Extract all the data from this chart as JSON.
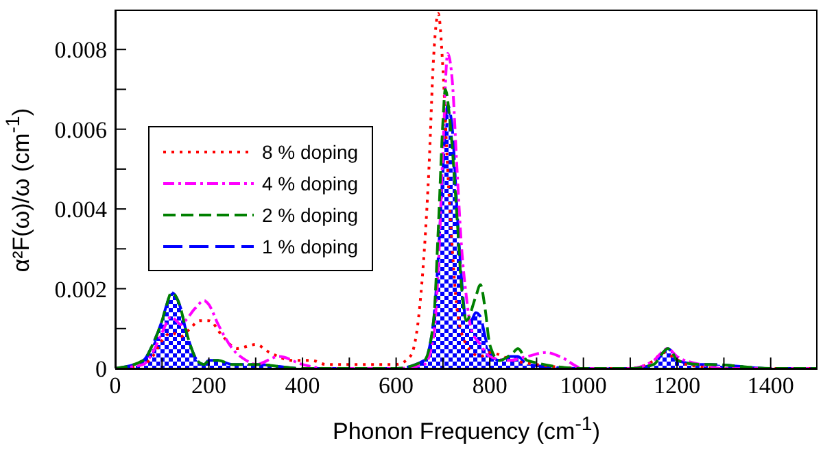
{
  "chart_data": {
    "type": "line",
    "xlabel": "Phonon Frequency (cm$^{-1}$)",
    "ylabel": "α²F(ω)/ω (cm$^{-1}$)",
    "xlim": [
      0,
      1500
    ],
    "xticks": [
      0,
      {
        "value": 100,
        "label": null
      },
      200,
      {
        "value": 300,
        "label": null
      },
      400,
      {
        "value": 500,
        "label": null
      },
      600,
      {
        "value": 700,
        "label": null
      },
      800,
      {
        "value": 900,
        "label": null
      },
      1000,
      {
        "value": 1100,
        "label": null
      },
      1200,
      {
        "value": 1300,
        "label": null
      },
      1400
    ],
    "ylim": [
      0,
      0.009
    ],
    "yticks": [
      0,
      {
        "value": 0.001,
        "label": null
      },
      0.002,
      {
        "value": 0.003,
        "label": null
      },
      0.004,
      {
        "value": 0.005,
        "label": null
      },
      0.006,
      {
        "value": 0.007,
        "label": null
      },
      0.008
    ],
    "legend": "left",
    "grid": false,
    "marker": "none",
    "series": [
      {
        "name": "8 % doping",
        "color": "#ff0000",
        "line_style": "dotted",
        "x": [
          0,
          60,
          80,
          100,
          120,
          140,
          160,
          180,
          200,
          230,
          260,
          300,
          330,
          380,
          420,
          450,
          500,
          550,
          600,
          630,
          650,
          670,
          680,
          690,
          700,
          710,
          720,
          730,
          750,
          780,
          800,
          850,
          900,
          1000,
          1100,
          1150,
          1170,
          1190,
          1220,
          1300,
          1500
        ],
        "values": [
          0,
          0.0001,
          0.0003,
          0.0007,
          0.0009,
          0.0008,
          0.001,
          0.0012,
          0.0012,
          0.0008,
          0.0005,
          0.0006,
          0.0004,
          0.0002,
          0.0002,
          0.0001,
          0.0001,
          0.0001,
          0.0001,
          0.0003,
          0.0015,
          0.005,
          0.0078,
          0.0089,
          0.0075,
          0.005,
          0.003,
          0.0015,
          0.0006,
          0.0003,
          0.0004,
          0.0002,
          0.0001,
          0,
          0,
          0.0002,
          0.0004,
          0.0003,
          0.0001,
          0,
          0
        ]
      },
      {
        "name": "4 % doping",
        "color": "#ff00ff",
        "line_style": "dashed",
        "x": [
          0,
          60,
          80,
          100,
          120,
          130,
          140,
          150,
          170,
          190,
          200,
          220,
          250,
          280,
          300,
          350,
          400,
          450,
          600,
          660,
          680,
          690,
          700,
          710,
          720,
          730,
          740,
          750,
          760,
          780,
          800,
          840,
          880,
          920,
          950,
          1000,
          1100,
          1150,
          1180,
          1200,
          1250,
          1300,
          1500
        ],
        "values": [
          0,
          0.0001,
          0.0004,
          0.0009,
          0.0013,
          0.0012,
          0.0011,
          0.0012,
          0.0015,
          0.0017,
          0.0016,
          0.0011,
          0.0005,
          0.0002,
          0.0001,
          0.0003,
          0.0001,
          0,
          0,
          0.0001,
          0.0008,
          0.0025,
          0.0055,
          0.0079,
          0.0072,
          0.005,
          0.003,
          0.0018,
          0.001,
          0.0006,
          0.0003,
          0.0002,
          0.0003,
          0.0004,
          0.0003,
          0,
          0,
          0.0002,
          0.0005,
          0.0003,
          0.0001,
          0,
          0
        ]
      },
      {
        "name": "2 % doping",
        "color": "#008000",
        "line_style": "dashed",
        "x": [
          0,
          60,
          80,
          100,
          110,
          120,
          130,
          140,
          150,
          160,
          175,
          190,
          200,
          220,
          250,
          300,
          400,
          600,
          660,
          680,
          690,
          700,
          705,
          715,
          730,
          740,
          750,
          770,
          780,
          790,
          800,
          820,
          850,
          860,
          880,
          1000,
          1100,
          1150,
          1170,
          1180,
          1190,
          1200,
          1250,
          1270,
          1400,
          1500
        ],
        "values": [
          0,
          0.0002,
          0.0006,
          0.0012,
          0.0016,
          0.0019,
          0.0018,
          0.0015,
          0.001,
          0.0006,
          0.0002,
          0.0001,
          0.0002,
          0.0002,
          0.0001,
          0.0001,
          0,
          0,
          0.0002,
          0.0012,
          0.0035,
          0.0062,
          0.007,
          0.0062,
          0.0038,
          0.002,
          0.0012,
          0.0018,
          0.0021,
          0.0015,
          0.0006,
          0.0002,
          0.0004,
          0.0005,
          0.0002,
          0,
          0,
          0.0001,
          0.0004,
          0.0005,
          0.0004,
          0.0002,
          0.0001,
          0.0001,
          0,
          0
        ]
      },
      {
        "name": "1 % doping",
        "color": "#0000ff",
        "type": "area",
        "line_style": "dashed",
        "x": [
          0,
          60,
          80,
          100,
          110,
          120,
          130,
          140,
          150,
          160,
          175,
          190,
          200,
          220,
          250,
          300,
          400,
          600,
          660,
          680,
          690,
          700,
          710,
          720,
          730,
          740,
          750,
          760,
          770,
          780,
          790,
          800,
          820,
          840,
          860,
          880,
          1000,
          1100,
          1150,
          1170,
          1180,
          1190,
          1200,
          1250,
          1270,
          1400,
          1500
        ],
        "values": [
          0,
          0.0002,
          0.0006,
          0.0012,
          0.0016,
          0.0019,
          0.0018,
          0.0015,
          0.001,
          0.0006,
          0.0002,
          0.0001,
          0.0002,
          0.0002,
          0.0001,
          0.0001,
          0,
          0,
          0.0002,
          0.0012,
          0.0028,
          0.005,
          0.0066,
          0.006,
          0.004,
          0.0022,
          0.0012,
          0.0012,
          0.0014,
          0.0013,
          0.0008,
          0.0004,
          0.0002,
          0.0003,
          0.0003,
          0.0001,
          0,
          0,
          0.0001,
          0.0004,
          0.0005,
          0.0004,
          0.0002,
          0.0001,
          0.0001,
          0,
          0
        ]
      }
    ]
  }
}
